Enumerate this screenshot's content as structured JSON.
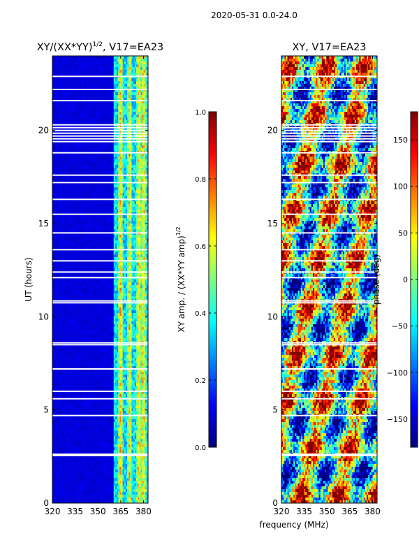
{
  "figure": {
    "suptitle": "2020-05-31 0.0-24.0",
    "shared_xlabel": "frequency (MHz)"
  },
  "colormap": {
    "name": "jet",
    "stops": [
      "#00007f",
      "#0000ff",
      "#007fff",
      "#00ffff",
      "#7fff7f",
      "#ffff00",
      "#ff7f00",
      "#ff0000",
      "#7f0000"
    ]
  },
  "chart_data": [
    {
      "type": "heatmap",
      "id": "amp",
      "title": "XY/(XX*YY)",
      "title_superscript": "1/2",
      "title_suffix": ", V17=EA23",
      "xlabel": "",
      "ylabel": "UT (hours)",
      "xlim": [
        320,
        383
      ],
      "ylim": [
        0,
        24
      ],
      "xticks": [
        320,
        335,
        350,
        365,
        380
      ],
      "yticks": [
        0,
        5,
        10,
        15,
        20
      ],
      "freq_band_active": [
        360,
        382
      ],
      "bright_channels_mhz": [
        364.5,
        370.5,
        376.5,
        379.5
      ],
      "gap_rows_hours": [
        2.55,
        2.62,
        10.75,
        10.85,
        19.4,
        19.55,
        19.7,
        19.85,
        20.0,
        20.15,
        20.3,
        12.1,
        13.6,
        14.5,
        16.3,
        6.0,
        8.6,
        8.5,
        4.7,
        5.6,
        7.2,
        22.2,
        22.9,
        21.6,
        17.2,
        17.6,
        18.8,
        15.5,
        13.0,
        12.4
      ],
      "colorbar": {
        "label": "XY amp. / (XX*YY amp)",
        "label_superscript": "1/2",
        "vmin": 0.0,
        "vmax": 1.0,
        "ticks": [
          "0.0",
          "0.2",
          "0.4",
          "0.6",
          "0.8",
          "1.0"
        ]
      }
    },
    {
      "type": "heatmap",
      "id": "phase",
      "title": "XY, V17=EA23",
      "xlabel": "frequency (MHz)",
      "ylabel": "",
      "xlim": [
        320,
        383
      ],
      "ylim": [
        0,
        24
      ],
      "xticks": [
        320,
        335,
        350,
        365,
        380
      ],
      "yticks": [
        0,
        5,
        10,
        15,
        20
      ],
      "gap_rows_hours": [
        2.55,
        2.62,
        10.75,
        10.85,
        19.4,
        19.55,
        19.7,
        19.85,
        20.0,
        20.15,
        20.3,
        12.1,
        13.6,
        14.5,
        16.3,
        6.0,
        8.6,
        8.5,
        4.7,
        5.6,
        7.2,
        22.2,
        22.9,
        21.6,
        17.2,
        17.6,
        18.8,
        15.5,
        13.0,
        12.4
      ],
      "colorbar": {
        "label": "phase (deg)",
        "vmin": -180,
        "vmax": 180,
        "ticks": [
          "−150",
          "−100",
          "−50",
          "0",
          "50",
          "100",
          "150"
        ]
      }
    }
  ]
}
